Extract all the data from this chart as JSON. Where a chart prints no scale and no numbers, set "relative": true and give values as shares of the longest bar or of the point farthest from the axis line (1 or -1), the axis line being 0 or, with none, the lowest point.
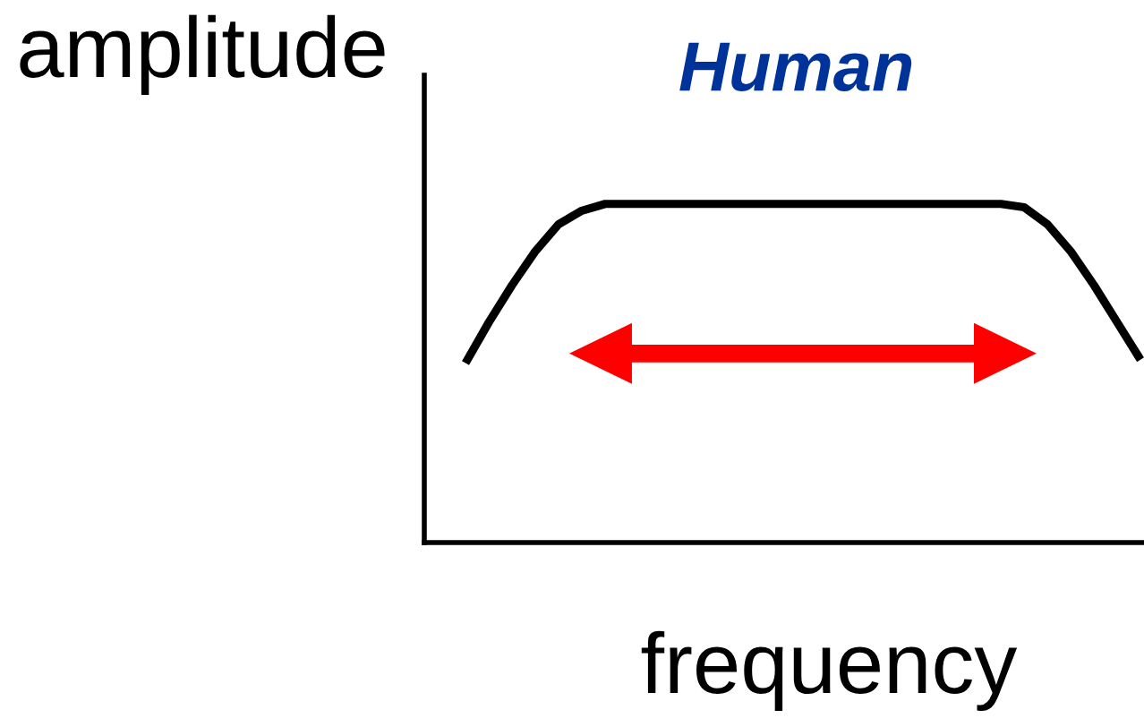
{
  "chart_data": {
    "type": "line",
    "title": "Human",
    "xlabel": "frequency",
    "ylabel": "amplitude",
    "relative": true,
    "categories": [
      null,
      null,
      null,
      null,
      null,
      null,
      null,
      null,
      null,
      null,
      null,
      null,
      null,
      null,
      null,
      null,
      null,
      null,
      null,
      null,
      null,
      null,
      null,
      null,
      null,
      null,
      null,
      null,
      null,
      null
    ],
    "series": [
      {
        "color": "#000000",
        "values": [
          0.53,
          0.65,
          0.76,
          0.86,
          0.94,
          0.98,
          1,
          1,
          1,
          1,
          1,
          1,
          1,
          1,
          1,
          1,
          1,
          1,
          1,
          1,
          1,
          1,
          1,
          1,
          0.99,
          0.94,
          0.86,
          0.76,
          0.65,
          0.54
        ]
      }
    ]
  }
}
